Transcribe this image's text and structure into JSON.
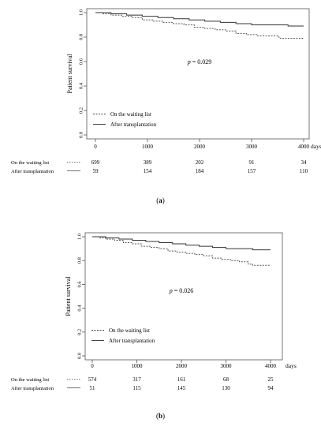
{
  "chart_data": [
    {
      "type": "line",
      "panel_label": "a",
      "ylabel": "Patient survival",
      "x_unit_label": "days",
      "x_ticks": [
        0,
        1000,
        2000,
        3000,
        4000
      ],
      "y_ticks": [
        "0.0",
        "0.2",
        "0.4",
        "0.6",
        "0.8",
        "1.0"
      ],
      "xlim": [
        0,
        4000
      ],
      "ylim": [
        0,
        1
      ],
      "annotation": {
        "prefix": "p",
        "text": " = 0.029",
        "x": 2000,
        "y": 0.58
      },
      "legend_position": "bottom-left",
      "series": [
        {
          "name": "On the waiting  list",
          "style": "dashed",
          "x": [
            0,
            150,
            300,
            500,
            700,
            900,
            1100,
            1300,
            1500,
            1700,
            1900,
            2100,
            2300,
            2500,
            2700,
            2900,
            3100,
            3300,
            3500,
            3550,
            3700,
            3900,
            4000
          ],
          "y": [
            1.0,
            0.99,
            0.98,
            0.97,
            0.96,
            0.94,
            0.93,
            0.92,
            0.91,
            0.9,
            0.88,
            0.87,
            0.86,
            0.85,
            0.83,
            0.82,
            0.81,
            0.81,
            0.8,
            0.79,
            0.79,
            0.79,
            0.79
          ],
          "at_risk": [
            "699",
            "389",
            "202",
            "91",
            "34"
          ]
        },
        {
          "name": "After transplantation",
          "style": "solid",
          "x": [
            0,
            300,
            600,
            900,
            1200,
            1500,
            1800,
            2100,
            2400,
            2700,
            3000,
            3300,
            3600,
            3700,
            4000
          ],
          "y": [
            1.0,
            0.99,
            0.98,
            0.97,
            0.96,
            0.95,
            0.94,
            0.93,
            0.92,
            0.91,
            0.9,
            0.9,
            0.9,
            0.89,
            0.89
          ],
          "at_risk": [
            "59",
            "154",
            "184",
            "157",
            "110"
          ]
        }
      ]
    },
    {
      "type": "line",
      "panel_label": "b",
      "ylabel": "Patient survival",
      "x_unit_label": "days",
      "x_ticks": [
        0,
        1000,
        2000,
        3000,
        4000
      ],
      "y_ticks": [
        "0.0",
        "0.2",
        "0.4",
        "0.6",
        "0.8",
        "1.0"
      ],
      "xlim": [
        0,
        4000
      ],
      "ylim": [
        0,
        1
      ],
      "annotation": {
        "prefix": "p",
        "text": " = 0.026",
        "x": 2000,
        "y": 0.53
      },
      "legend_position": "bottom-left",
      "series": [
        {
          "name": "On the waiting  list",
          "style": "dashed",
          "x": [
            0,
            150,
            300,
            500,
            700,
            900,
            1100,
            1300,
            1500,
            1700,
            1900,
            2100,
            2300,
            2500,
            2700,
            2900,
            3100,
            3300,
            3500,
            3600,
            3800,
            4000
          ],
          "y": [
            1.0,
            0.99,
            0.98,
            0.97,
            0.95,
            0.94,
            0.92,
            0.91,
            0.9,
            0.88,
            0.87,
            0.86,
            0.85,
            0.84,
            0.82,
            0.81,
            0.8,
            0.79,
            0.77,
            0.76,
            0.76,
            0.76
          ],
          "at_risk": [
            "574",
            "317",
            "161",
            "68",
            "25"
          ]
        },
        {
          "name": "After transplantation",
          "style": "solid",
          "x": [
            0,
            300,
            600,
            900,
            1200,
            1500,
            1800,
            2100,
            2400,
            2700,
            3000,
            3300,
            3600,
            3700,
            4000
          ],
          "y": [
            1.0,
            0.99,
            0.98,
            0.97,
            0.96,
            0.95,
            0.94,
            0.93,
            0.92,
            0.91,
            0.9,
            0.9,
            0.89,
            0.89,
            0.89
          ],
          "at_risk": [
            "51",
            "115",
            "145",
            "130",
            "94"
          ]
        }
      ]
    }
  ]
}
